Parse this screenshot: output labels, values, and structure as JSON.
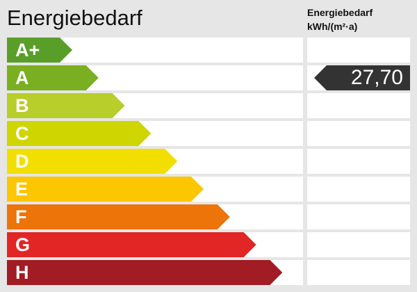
{
  "title": "Energiebedarf",
  "column_title_line1": "Energiebedarf",
  "column_title_line2": "kWh/(m²·a)",
  "chart_data": {
    "type": "bar",
    "title": "Energiebedarf",
    "categories": [
      "A+",
      "A",
      "B",
      "C",
      "D",
      "E",
      "F",
      "G",
      "H"
    ],
    "colors": [
      "#5a9e2a",
      "#7aaf22",
      "#b8ce2a",
      "#cfd500",
      "#f2df00",
      "#fcc600",
      "#ec7409",
      "#e22525",
      "#a21c23"
    ],
    "value": "27,70",
    "value_class": "A",
    "unit": "kWh/(m²·a)",
    "pointer_color": "#333333"
  }
}
